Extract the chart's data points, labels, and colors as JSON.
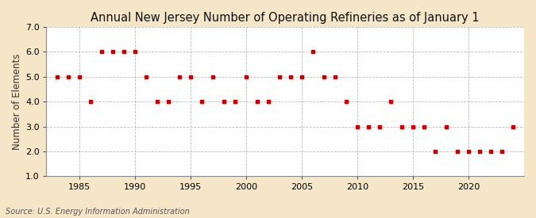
{
  "title": "Annual New Jersey Number of Operating Refineries as of January 1",
  "ylabel": "Number of Elements",
  "source": "Source: U.S. Energy Information Administration",
  "background_color": "#f5e6c8",
  "plot_background_color": "#ffffff",
  "marker_color": "#cc0000",
  "grid_color": "#aaaaaa",
  "years": [
    1983,
    1984,
    1985,
    1986,
    1987,
    1988,
    1989,
    1990,
    1991,
    1992,
    1993,
    1994,
    1995,
    1996,
    1997,
    1998,
    1999,
    2000,
    2001,
    2002,
    2003,
    2004,
    2005,
    2006,
    2007,
    2008,
    2009,
    2010,
    2011,
    2012,
    2013,
    2014,
    2015,
    2016,
    2017,
    2018,
    2019,
    2020,
    2021,
    2022,
    2023,
    2024
  ],
  "values": [
    5,
    5,
    5,
    4,
    6,
    6,
    6,
    6,
    5,
    4,
    4,
    5,
    5,
    4,
    5,
    4,
    4,
    5,
    4,
    4,
    5,
    5,
    5,
    6,
    5,
    5,
    4,
    3,
    3,
    3,
    4,
    3,
    3,
    3,
    2,
    3,
    2,
    2,
    2,
    2,
    2,
    3
  ],
  "ylim": [
    1.0,
    7.0
  ],
  "yticks": [
    1.0,
    2.0,
    3.0,
    4.0,
    5.0,
    6.0,
    7.0
  ],
  "xticks": [
    1985,
    1990,
    1995,
    2000,
    2005,
    2010,
    2015,
    2020
  ],
  "xlim": [
    1982,
    2025
  ],
  "title_fontsize": 10.5,
  "label_fontsize": 8.5,
  "tick_fontsize": 8,
  "source_fontsize": 7
}
